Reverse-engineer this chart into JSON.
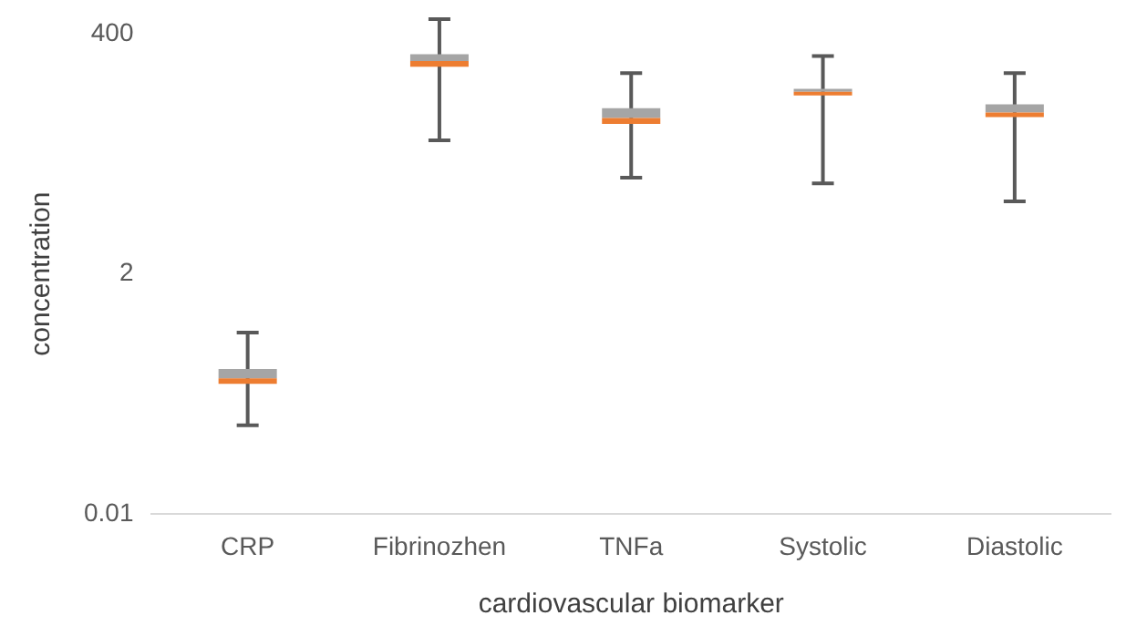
{
  "chart_data": {
    "type": "box",
    "xlabel": "cardiovascular biomarker",
    "ylabel": "concentration",
    "categories": [
      "CRP",
      "Fibrinozhen",
      "TNFa",
      "Systolic",
      "Diastolic"
    ],
    "color": "#a5a5a5",
    "log": true,
    "ylim": [
      0.01,
      400
    ],
    "yticks": [
      0.01,
      2,
      400
    ],
    "grid": false,
    "boxes": [
      {
        "low": 0.071,
        "q1": 0.177,
        "median": 0.2,
        "q3": 0.246,
        "high": 0.55
      },
      {
        "low": 38,
        "q1": 192,
        "median": 218,
        "q3": 253,
        "high": 550
      },
      {
        "low": 16.7,
        "q1": 54.5,
        "median": 62,
        "q3": 77,
        "high": 167
      },
      {
        "low": 14.7,
        "q1": 103,
        "median": 111,
        "q3": 118,
        "high": 244
      },
      {
        "low": 9.9,
        "q1": 63.5,
        "median": 70,
        "q3": 84,
        "high": 167
      }
    ]
  }
}
